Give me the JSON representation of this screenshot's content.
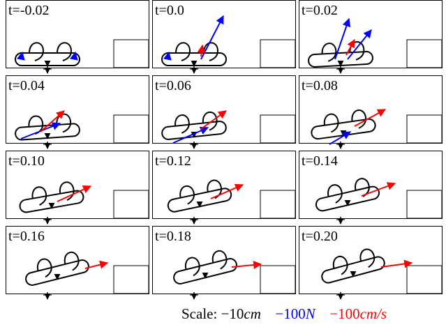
{
  "frames": [
    {
      "t_label": "t=-0.02",
      "angle": 0,
      "dx": 0,
      "dy": 0,
      "blue": [
        [
          -38,
          0,
          -36,
          -10
        ],
        [
          38,
          0,
          40,
          -10
        ]
      ],
      "red": []
    },
    {
      "t_label": "t=0.0",
      "angle": 0,
      "dx": 0,
      "dy": 0,
      "blue": [
        [
          -38,
          0,
          -36,
          -10
        ],
        [
          10,
          0,
          42,
          -62
        ]
      ],
      "red": [
        [
          10,
          -4,
          12,
          -20
        ]
      ]
    },
    {
      "t_label": "t=0.02",
      "angle": -3,
      "dx": 0,
      "dy": 0,
      "blue": [
        [
          -8,
          0,
          12,
          -58
        ],
        [
          10,
          0,
          44,
          -42
        ]
      ],
      "red": [
        [
          8,
          -6,
          20,
          -28
        ]
      ]
    },
    {
      "t_label": "t=0.04",
      "angle": -4,
      "dx": 0,
      "dy": -4,
      "blue": [
        [
          -38,
          10,
          18,
          -12
        ]
      ],
      "red": [
        [
          -10,
          0,
          24,
          -30
        ]
      ]
    },
    {
      "t_label": "t=0.06",
      "angle": -6,
      "dx": 0,
      "dy": -6,
      "blue": [
        [
          -30,
          18,
          20,
          -4
        ]
      ],
      "red": [
        [
          10,
          -2,
          46,
          -28
        ]
      ]
    },
    {
      "t_label": "t=0.08",
      "angle": -8,
      "dx": 4,
      "dy": -8,
      "blue": [
        [
          -20,
          22,
          10,
          4
        ]
      ],
      "red": [
        [
          16,
          -4,
          60,
          -28
        ]
      ]
    },
    {
      "t_label": "t=0.10",
      "angle": -10,
      "dx": 6,
      "dy": -12,
      "blue": [],
      "red": [
        [
          8,
          0,
          56,
          -22
        ]
      ]
    },
    {
      "t_label": "t=0.12",
      "angle": -12,
      "dx": 8,
      "dy": -14,
      "blue": [],
      "red": [
        [
          16,
          -2,
          62,
          -22
        ]
      ]
    },
    {
      "t_label": "t=0.14",
      "angle": -13,
      "dx": 10,
      "dy": -16,
      "blue": [],
      "red": [
        [
          20,
          -4,
          68,
          -22
        ]
      ]
    },
    {
      "t_label": "t=0.16",
      "angle": -14,
      "dx": 14,
      "dy": -18,
      "blue": [],
      "red": [
        [
          40,
          -6,
          72,
          -14
        ]
      ]
    },
    {
      "t_label": "t=0.18",
      "angle": -14,
      "dx": 16,
      "dy": -20,
      "blue": [],
      "red": [
        [
          38,
          -6,
          80,
          -10
        ]
      ]
    },
    {
      "t_label": "t=0.20",
      "angle": -15,
      "dx": 18,
      "dy": -22,
      "blue": [],
      "red": [
        [
          40,
          -4,
          84,
          -10
        ]
      ]
    }
  ],
  "scale": {
    "prefix": "Scale: ",
    "black_value": "−10",
    "black_unit": "cm",
    "blue_value": "−100",
    "blue_unit": "N",
    "red_value": "−100",
    "red_unit": "cm/s"
  },
  "colors": {
    "body": "#000000",
    "force": "#0000ff",
    "velocity": "#ff0000"
  }
}
